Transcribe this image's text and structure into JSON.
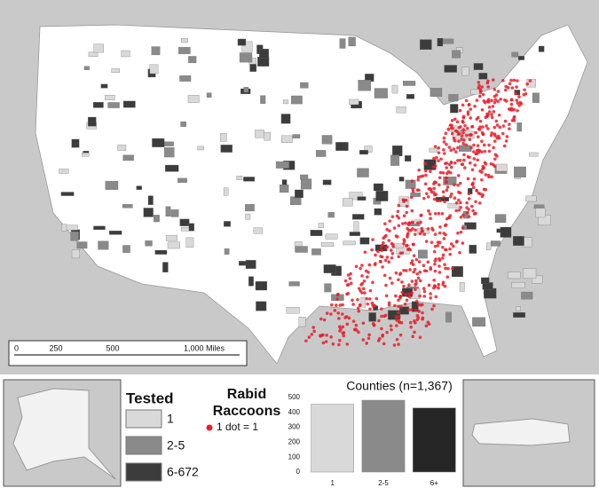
{
  "map": {
    "scale_bar": {
      "labels": [
        "0",
        "250",
        "500",
        "1,000 Miles"
      ]
    },
    "legend": {
      "tested_title": "Tested",
      "tested_items": [
        {
          "label": "1",
          "color": "#d9d9d9"
        },
        {
          "label": "2-5",
          "color": "#8a8a8a"
        },
        {
          "label": "6-672",
          "color": "#3c3c3c"
        }
      ],
      "raccoon_title_1": "Rabid",
      "raccoon_title_2": "Raccoons",
      "dot_label": "1 dot = 1",
      "dot_color": "#e8202a"
    }
  },
  "chart_data": {
    "type": "bar",
    "title": "Counties (n=1,367)",
    "categories": [
      "1",
      "2-5",
      "6+"
    ],
    "values": [
      455,
      482,
      430
    ],
    "colors": [
      "#d9d9d9",
      "#8a8a8a",
      "#262626"
    ],
    "ylim": [
      0,
      500
    ],
    "yticks": [
      0,
      100,
      200,
      300,
      400,
      500
    ]
  }
}
